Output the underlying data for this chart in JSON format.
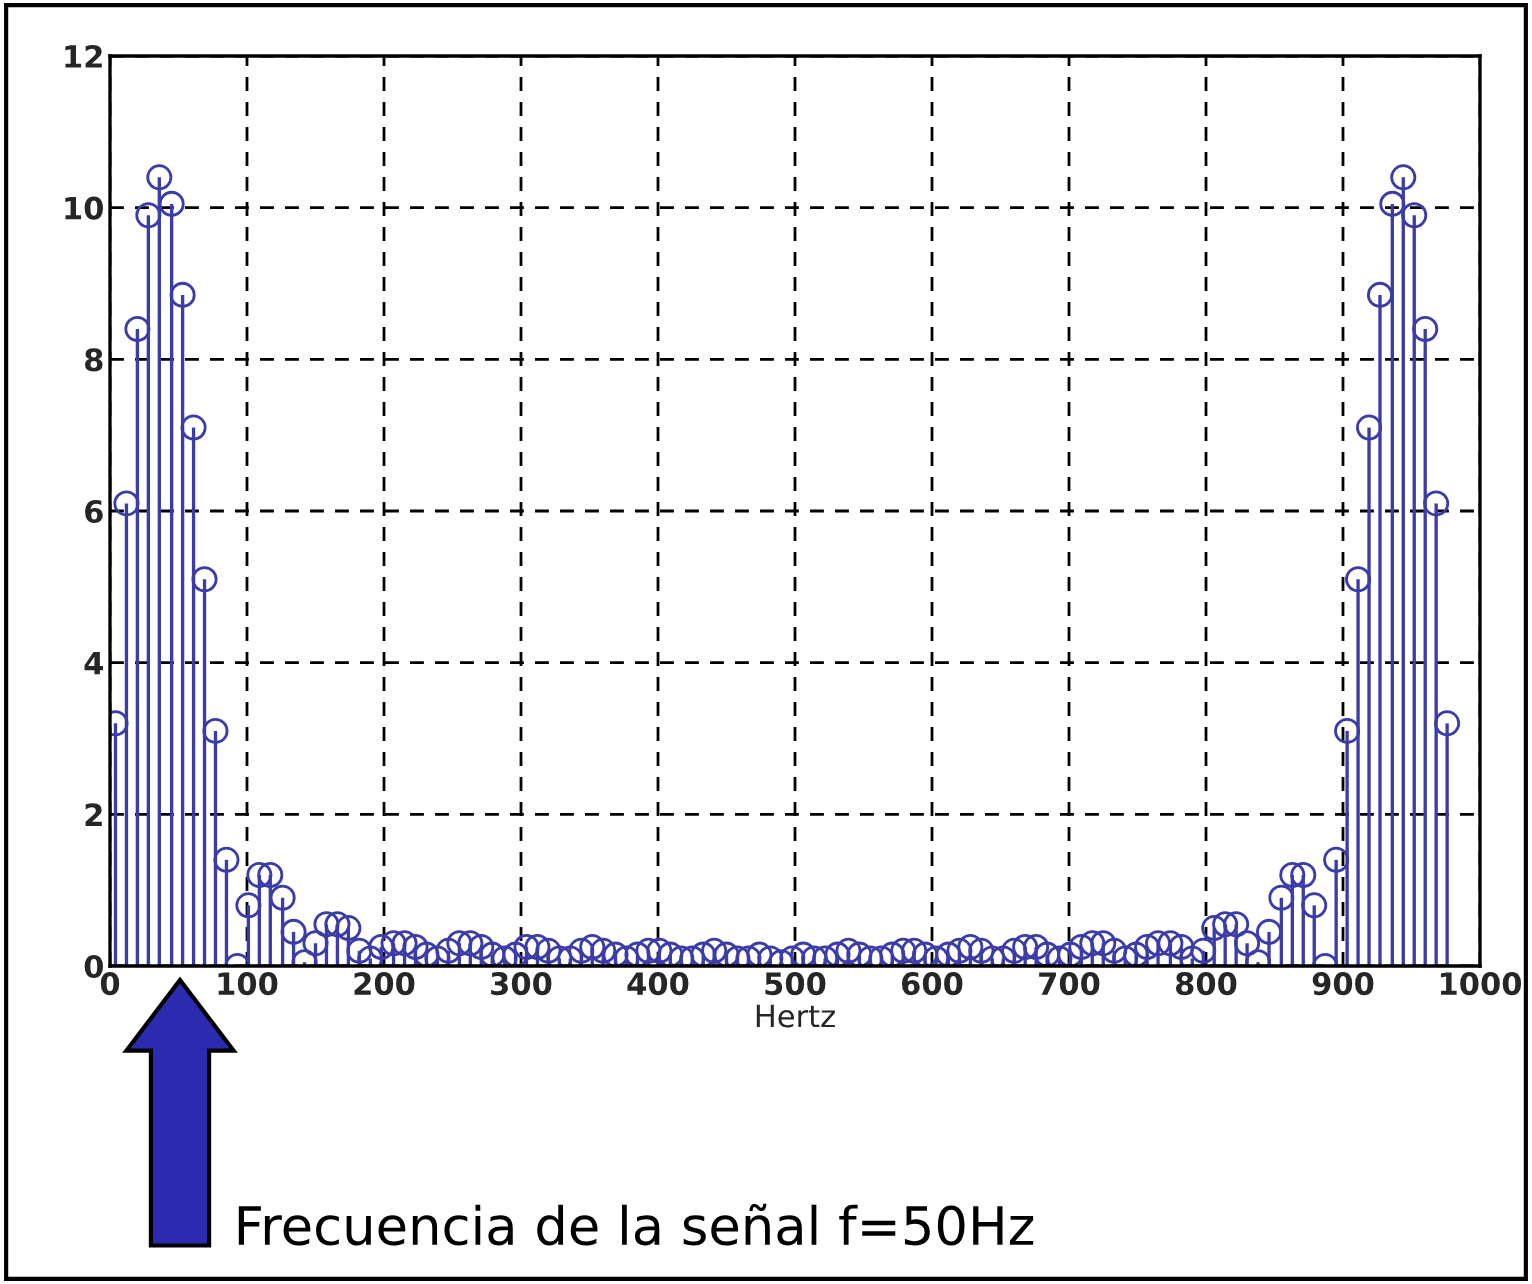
{
  "chart_data": {
    "type": "lollipop",
    "xlabel": "Hertz",
    "x": [
      4,
      12,
      20,
      28,
      36,
      45,
      53,
      61,
      69,
      77,
      85,
      93,
      101,
      109,
      117,
      126,
      134,
      142,
      150,
      158,
      166,
      174,
      182,
      190,
      198,
      207,
      215,
      223,
      231,
      239,
      247,
      255,
      263,
      271,
      279,
      288,
      296,
      304,
      312,
      320,
      328,
      336,
      344,
      352,
      360,
      369,
      377,
      385,
      393,
      401,
      409,
      417,
      425,
      433,
      441,
      450,
      458,
      466,
      474,
      482,
      490,
      498,
      506,
      514,
      522,
      531,
      539,
      547,
      555,
      563,
      571,
      579,
      587,
      595,
      603,
      612,
      620,
      628,
      636,
      644,
      652,
      660,
      668,
      676,
      684,
      693,
      701,
      709,
      717,
      725,
      733,
      741,
      749,
      757,
      765,
      774,
      782,
      790,
      798,
      806,
      814,
      822,
      830,
      838,
      846,
      855,
      863,
      871,
      879,
      887,
      895,
      903,
      911,
      919,
      927,
      936,
      944,
      952,
      960,
      968,
      976
    ],
    "series": [
      {
        "color": "#3c3ca8",
        "values": [
          3.2,
          6.1,
          8.4,
          9.9,
          10.4,
          10.05,
          8.85,
          7.1,
          5.1,
          3.1,
          1.4,
          0.0,
          0.8,
          1.2,
          1.2,
          0.9,
          0.45,
          0.05,
          0.3,
          0.55,
          0.55,
          0.5,
          0.2,
          0.1,
          0.25,
          0.3,
          0.3,
          0.25,
          0.15,
          0.1,
          0.2,
          0.3,
          0.3,
          0.25,
          0.15,
          0.1,
          0.15,
          0.25,
          0.25,
          0.2,
          0.1,
          0.1,
          0.2,
          0.25,
          0.2,
          0.15,
          0.1,
          0.15,
          0.2,
          0.2,
          0.15,
          0.1,
          0.1,
          0.15,
          0.2,
          0.15,
          0.1,
          0.1,
          0.15,
          0.1,
          0.05,
          0.1,
          0.15,
          0.1,
          0.1,
          0.15,
          0.2,
          0.15,
          0.1,
          0.1,
          0.15,
          0.2,
          0.2,
          0.15,
          0.1,
          0.15,
          0.2,
          0.25,
          0.2,
          0.1,
          0.1,
          0.2,
          0.25,
          0.25,
          0.15,
          0.1,
          0.15,
          0.25,
          0.3,
          0.3,
          0.2,
          0.1,
          0.15,
          0.25,
          0.3,
          0.3,
          0.25,
          0.1,
          0.2,
          0.5,
          0.55,
          0.55,
          0.3,
          0.05,
          0.45,
          0.9,
          1.2,
          1.2,
          0.8,
          0.0,
          1.4,
          3.1,
          5.1,
          7.1,
          8.85,
          10.05,
          10.4,
          9.9,
          8.4,
          6.1,
          3.2
        ]
      }
    ],
    "xlim": [
      0,
      1000
    ],
    "xticks": [
      0,
      100,
      200,
      300,
      400,
      500,
      600,
      700,
      800,
      900,
      1000
    ],
    "ylim": [
      0,
      12
    ],
    "yticks": [
      0,
      2,
      4,
      6,
      8,
      10,
      12
    ],
    "grid": true,
    "marker": "circle",
    "annotations": [
      "Frecuencia de la señal f=50Hz"
    ]
  }
}
